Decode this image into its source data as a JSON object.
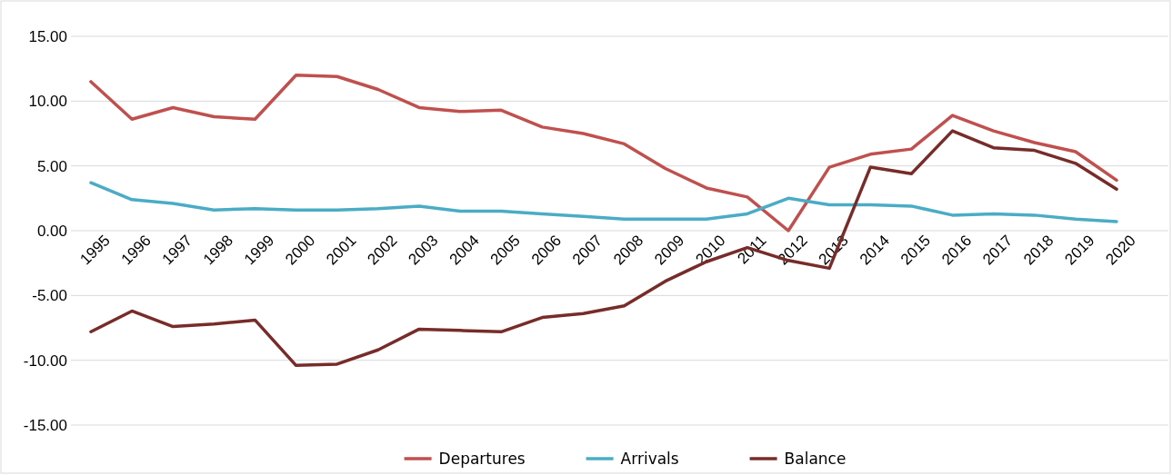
{
  "chart_data": {
    "type": "line",
    "categories": [
      "1995",
      "1996",
      "1997",
      "1998",
      "1999",
      "2000",
      "2001",
      "2002",
      "2003",
      "2004",
      "2005",
      "2006",
      "2007",
      "2008",
      "2009",
      "2010",
      "2011",
      "2012",
      "2013",
      "2014",
      "2015",
      "2016",
      "2017",
      "2018",
      "2019",
      "2020"
    ],
    "series": [
      {
        "name": "Departures",
        "color": "#c0504d",
        "values": [
          11.5,
          8.6,
          9.5,
          8.8,
          8.6,
          12.0,
          11.9,
          10.9,
          9.5,
          9.2,
          9.3,
          8.0,
          7.5,
          6.7,
          4.8,
          3.3,
          2.6,
          0.0,
          4.9,
          5.9,
          6.3,
          8.9,
          7.7,
          6.8,
          6.1,
          3.9
        ]
      },
      {
        "name": "Arrivals",
        "color": "#4bacc6",
        "values": [
          3.7,
          2.4,
          2.1,
          1.6,
          1.7,
          1.6,
          1.6,
          1.7,
          1.9,
          1.5,
          1.5,
          1.3,
          1.1,
          0.9,
          0.9,
          0.9,
          1.3,
          2.5,
          2.0,
          2.0,
          1.9,
          1.2,
          1.3,
          1.2,
          0.9,
          0.7
        ]
      },
      {
        "name": "Balance",
        "color": "#772c2a",
        "values": [
          -7.8,
          -6.2,
          -7.4,
          -7.2,
          -6.9,
          -10.4,
          -10.3,
          -9.2,
          -7.6,
          -7.7,
          -7.8,
          -6.7,
          -6.4,
          -5.8,
          -3.9,
          -2.4,
          -1.3,
          -2.3,
          -2.9,
          4.9,
          4.4,
          7.7,
          6.4,
          6.2,
          5.2,
          3.2
        ]
      }
    ],
    "ylim": [
      -15,
      15
    ],
    "yticks": [
      {
        "value": -15,
        "label": "-15.00"
      },
      {
        "value": -10,
        "label": "-10.00"
      },
      {
        "value": -5,
        "label": "-5.00"
      },
      {
        "value": 0,
        "label": "0.00"
      },
      {
        "value": 5,
        "label": "5.00"
      },
      {
        "value": 10,
        "label": "10.00"
      },
      {
        "value": 15,
        "label": "15.00"
      }
    ],
    "grid": "y",
    "legend": "bottom",
    "marker": "none",
    "line_style": "solid"
  }
}
